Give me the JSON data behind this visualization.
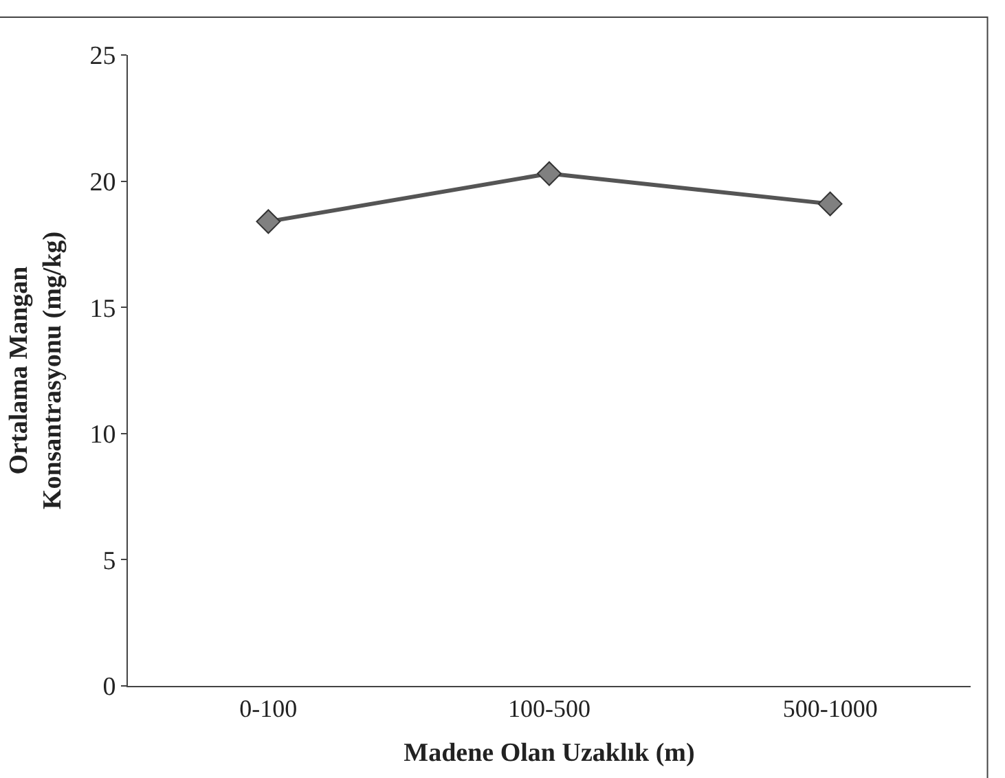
{
  "chart_data": {
    "type": "line",
    "xlabel": "Madene Olan Uzaklık (m)",
    "ylabel": "Ortalama Mangan Konsantrasyonu (mg/kg)",
    "categories": [
      "0-100",
      "100-500",
      "500-1000"
    ],
    "series": [
      {
        "color": "#555555",
        "values": [
          18.4,
          20.3,
          19.1
        ]
      }
    ],
    "ylim": [
      0,
      25
    ],
    "yticks": [
      0,
      5,
      10,
      15,
      20,
      25
    ],
    "marker": "diamond",
    "line_style": "solid",
    "legend": false
  }
}
